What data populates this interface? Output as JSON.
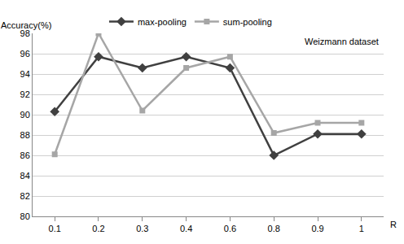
{
  "chart_data": {
    "type": "line",
    "ylabel": "Accuracy(%)",
    "xlabel": "R",
    "annotations": [
      "Weizmann dataset"
    ],
    "categories": [
      "0.1",
      "0.2",
      "0.3",
      "0.4",
      "0.6",
      "0.8",
      "0.9",
      "1"
    ],
    "series": [
      {
        "name": "max-pooling",
        "color": "#404040",
        "marker": "diamond",
        "values": [
          90.3,
          95.7,
          94.6,
          95.7,
          94.6,
          86.0,
          88.1,
          88.1
        ]
      },
      {
        "name": "sum-pooling",
        "color": "#a6a6a6",
        "marker": "square",
        "values": [
          86.1,
          98.0,
          90.4,
          94.6,
          95.7,
          88.2,
          89.2,
          89.2
        ]
      }
    ],
    "ylim": [
      80,
      98
    ],
    "yticks": [
      80,
      82,
      84,
      86,
      88,
      90,
      92,
      94,
      96,
      98
    ],
    "grid": true,
    "legend": "top"
  }
}
